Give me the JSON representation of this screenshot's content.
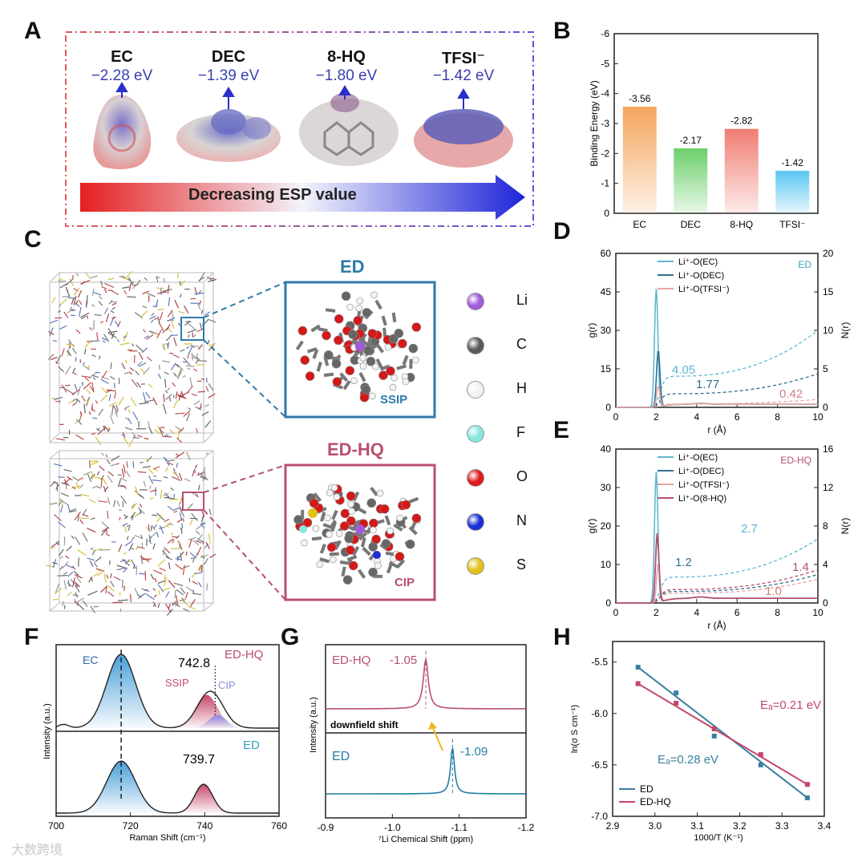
{
  "panels": {
    "a": "A",
    "b": "B",
    "c": "C",
    "d": "D",
    "e": "E",
    "f": "F",
    "g": "G",
    "h": "H"
  },
  "panelA": {
    "molecules": [
      {
        "name": "EC",
        "value": "−2.28 eV"
      },
      {
        "name": "DEC",
        "value": "−1.39 eV"
      },
      {
        "name": "8-HQ",
        "value": "−1.80 eV"
      },
      {
        "name": "TFSI⁻",
        "value": "−1.42 eV"
      }
    ],
    "gradient_label": "Decreasing ESP value"
  },
  "panelC": {
    "ed_title": "ED",
    "edhq_title": "ED-HQ",
    "ssip": "SSIP",
    "cip": "CIP",
    "legend": [
      {
        "label": "Li",
        "color": "#a05cd8"
      },
      {
        "label": "C",
        "color": "#5a5a5a"
      },
      {
        "label": "H",
        "color": "#f2f2f2"
      },
      {
        "label": "F",
        "color": "#88e6e0"
      },
      {
        "label": "O",
        "color": "#e11b1b"
      },
      {
        "label": "N",
        "color": "#1c2fd6"
      },
      {
        "label": "S",
        "color": "#e0c21a"
      }
    ]
  },
  "watermark": "大数跨境",
  "chart_data": [
    {
      "id": "B",
      "type": "bar",
      "categories": [
        "EC",
        "DEC",
        "8-HQ",
        "TFSI⁻"
      ],
      "values": [
        -3.56,
        -2.17,
        -2.82,
        -1.42
      ],
      "labels": [
        "-3.56",
        "-2.17",
        "-2.82",
        "-1.42"
      ],
      "colors": [
        "#f4a55c",
        "#6ccf6a",
        "#f07c72",
        "#59c6f2"
      ],
      "ylabel": "Binding Energy (eV)",
      "ylim": [
        0,
        -6
      ],
      "yticks": [
        "0",
        "-1",
        "-2",
        "-3",
        "-4",
        "-5",
        "-6"
      ]
    },
    {
      "id": "D",
      "type": "line",
      "xlabel": "r (Å)",
      "ylabel_left": "g(r)",
      "ylabel_right": "N(r)",
      "xlim": [
        0,
        10
      ],
      "ylim_left": [
        0,
        60
      ],
      "ylim_right": [
        0,
        20
      ],
      "xticks": [
        "0",
        "2",
        "4",
        "6",
        "8",
        "10"
      ],
      "yticks_left": [
        "0",
        "15",
        "30",
        "45",
        "60"
      ],
      "yticks_right": [
        "0",
        "5",
        "10",
        "15",
        "20"
      ],
      "tag": "ED",
      "legend": [
        "Li⁺-O(EC)",
        "Li⁺-O(DEC)",
        "Li⁺-O(TFSI⁻)"
      ],
      "series": [
        {
          "name": "Li⁺-O(EC)",
          "color": "#5fb6d3",
          "peak_r": 2.0,
          "peak_g": 46,
          "cn": 4.05
        },
        {
          "name": "Li⁺-O(DEC)",
          "color": "#2f6f8f",
          "peak_r": 2.1,
          "peak_g": 22,
          "cn": 1.77
        },
        {
          "name": "Li⁺-O(TFSI⁻)",
          "color": "#e8a3a3",
          "peak_r": 2.1,
          "peak_g": 8,
          "cn": 0.42
        }
      ],
      "annotations": [
        "4.05",
        "1.77",
        "0.42"
      ]
    },
    {
      "id": "E",
      "type": "line",
      "xlabel": "r (Å)",
      "ylabel_left": "g(r)",
      "ylabel_right": "N(r)",
      "xlim": [
        0,
        10
      ],
      "ylim_left": [
        0,
        40
      ],
      "ylim_right": [
        0,
        16
      ],
      "xticks": [
        "0",
        "2",
        "4",
        "6",
        "8",
        "10"
      ],
      "yticks_left": [
        "0",
        "10",
        "20",
        "30",
        "40"
      ],
      "yticks_right": [
        "0",
        "4",
        "8",
        "12",
        "16"
      ],
      "tag": "ED-HQ",
      "legend": [
        "Li⁺-O(EC)",
        "Li⁺-O(DEC)",
        "Li⁺-O(TFSI⁻)",
        "Li⁺-O(8-HQ)"
      ],
      "series": [
        {
          "name": "Li⁺-O(EC)",
          "color": "#5fb6d3",
          "peak_r": 2.0,
          "peak_g": 34,
          "cn": 2.7
        },
        {
          "name": "Li⁺-O(DEC)",
          "color": "#2f6f8f",
          "peak_r": 2.05,
          "peak_g": 17,
          "cn": 1.2
        },
        {
          "name": "Li⁺-O(TFSI⁻)",
          "color": "#e8a3a3",
          "peak_r": 2.1,
          "peak_g": 10,
          "cn": 1.0
        },
        {
          "name": "Li⁺-O(8-HQ)",
          "color": "#b8506e",
          "peak_r": 2.05,
          "peak_g": 18,
          "cn": 1.4
        }
      ],
      "annotations": [
        "2.7",
        "1.2",
        "1.4",
        "1.0"
      ]
    },
    {
      "id": "F",
      "type": "line",
      "xlabel": "Raman Shift (cm⁻¹)",
      "ylabel": "Intensity (a.u.)",
      "xlim": [
        700,
        760
      ],
      "xticks": [
        "700",
        "720",
        "740",
        "760"
      ],
      "top": {
        "label": "ED-HQ",
        "peaks": [
          717.5,
          742.8
        ],
        "annotation": "742.8",
        "ec": "EC",
        "ssip": "SSIP",
        "cip": "CIP"
      },
      "bottom": {
        "label": "ED",
        "peaks": [
          717.5,
          739.7
        ],
        "annotation": "739.7"
      }
    },
    {
      "id": "G",
      "type": "line",
      "xlabel": "⁷Li Chemical Shift (ppm)",
      "ylabel": "Intensity (a.u.)",
      "xlim": [
        -0.9,
        -1.2
      ],
      "xticks": [
        "-0.9",
        "-1.0",
        "-1.1",
        "-1.2"
      ],
      "top": {
        "label": "ED-HQ",
        "peak": -1.05,
        "annotation": "-1.05",
        "color": "#b8506e"
      },
      "bottom": {
        "label": "ED",
        "peak": -1.09,
        "annotation": "-1.09",
        "color": "#1f7fa0"
      },
      "arrow_label": "downfield shift"
    },
    {
      "id": "H",
      "type": "scatter",
      "xlabel": "1000/T (K⁻¹)",
      "ylabel": "ln(σ S cm⁻¹)",
      "xlim": [
        2.9,
        3.4
      ],
      "ylim": [
        -7.0,
        -5.3
      ],
      "xticks": [
        "2.9",
        "3.0",
        "3.1",
        "3.2",
        "3.3",
        "3.4"
      ],
      "yticks": [
        "-7.0",
        "-6.5",
        "-6.0",
        "-5.5"
      ],
      "series": [
        {
          "name": "ED",
          "color": "#3a7fa0",
          "x": [
            2.96,
            3.05,
            3.14,
            3.25,
            3.36
          ],
          "y": [
            -5.55,
            -5.8,
            -6.22,
            -6.5,
            -6.82
          ]
        },
        {
          "name": "ED-HQ",
          "color": "#c4456a",
          "x": [
            2.96,
            3.05,
            3.14,
            3.25,
            3.36
          ],
          "y": [
            -5.71,
            -5.9,
            -6.15,
            -6.4,
            -6.69
          ]
        }
      ],
      "annotations": {
        "edhq": "Eₐ=0.21 eV",
        "ed": "Eₐ=0.28 eV"
      }
    }
  ]
}
